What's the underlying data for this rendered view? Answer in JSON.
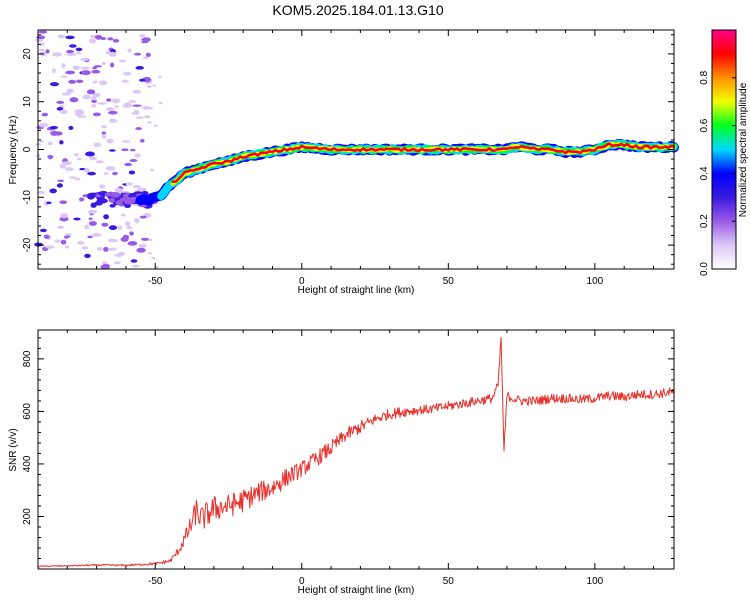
{
  "figure": {
    "title": "KOM5.2025.184.01.13.G10"
  },
  "chart_data": [
    {
      "type": "heatmap",
      "xlabel": "Height of straight line (km)",
      "ylabel": "Frequency (Hz)",
      "xlim": [
        -90,
        127
      ],
      "ylim": [
        -25,
        25
      ],
      "x_ticks": [
        -50,
        0,
        50,
        100
      ],
      "y_ticks": [
        -20,
        -10,
        0,
        10,
        20
      ],
      "colorbar": {
        "label": "Normalized spectral amplitude",
        "range": [
          0,
          1
        ],
        "ticks": [
          0.0,
          0.2,
          0.4,
          0.6,
          0.8
        ],
        "colors": [
          "#ffffff",
          "#dcc8f6",
          "#9a5ae8",
          "#3a1ae0",
          "#0000ff",
          "#00d8ff",
          "#00ff20",
          "#f0ff00",
          "#ff9000",
          "#ff0000",
          "#ff0088"
        ]
      },
      "ridge_x": [
        -90,
        -60,
        -52,
        -48,
        -45,
        -40,
        -35,
        -30,
        -25,
        -20,
        -15,
        -10,
        -5,
        0,
        10,
        20,
        30,
        40,
        50,
        60,
        70,
        72,
        75,
        80,
        85,
        90,
        95,
        100,
        105,
        110,
        115,
        120,
        127
      ],
      "ridge_freq": [
        -10,
        -10.5,
        -10.5,
        -9.5,
        -7.5,
        -5,
        -4,
        -3,
        -2.5,
        -1.5,
        -1,
        -0.5,
        0,
        0.5,
        0,
        0,
        0,
        0,
        0,
        0,
        0,
        0.5,
        0.5,
        0,
        0,
        -0.5,
        -0.5,
        0,
        1,
        1,
        0.5,
        0.5,
        0.5
      ],
      "grid": false
    },
    {
      "type": "line",
      "xlabel": "Height of straight line (km)",
      "ylabel": "SNR (v/v)",
      "xlim": [
        -90,
        127
      ],
      "ylim": [
        0,
        910
      ],
      "x_ticks": [
        -50,
        0,
        50,
        100
      ],
      "y_ticks": [
        200,
        400,
        600,
        800
      ],
      "series": [
        {
          "color": "#e8322d",
          "x": [
            -90,
            -80,
            -70,
            -60,
            -50,
            -45,
            -42,
            -38,
            -36,
            -34,
            -30,
            -25,
            -20,
            -15,
            -10,
            -5,
            0,
            5,
            10,
            15,
            20,
            25,
            30,
            35,
            40,
            45,
            50,
            55,
            60,
            65,
            67,
            68,
            69,
            70,
            72,
            75,
            80,
            85,
            90,
            95,
            100,
            105,
            110,
            115,
            120,
            127
          ],
          "y": [
            10,
            12,
            15,
            14,
            20,
            30,
            70,
            160,
            220,
            190,
            230,
            240,
            260,
            290,
            310,
            350,
            380,
            420,
            460,
            510,
            540,
            570,
            590,
            600,
            605,
            610,
            620,
            630,
            640,
            650,
            700,
            880,
            440,
            660,
            650,
            640,
            640,
            650,
            650,
            645,
            650,
            660,
            655,
            665,
            665,
            675
          ],
          "noise_amplitude": [
            2,
            2,
            3,
            3,
            5,
            8,
            15,
            40,
            50,
            50,
            50,
            45,
            45,
            40,
            40,
            35,
            30,
            30,
            30,
            25,
            25,
            20,
            20,
            20,
            18,
            18,
            18,
            18,
            18,
            18,
            18,
            18,
            18,
            18,
            18,
            18,
            18,
            18,
            18,
            18,
            18,
            18,
            18,
            18,
            18,
            18
          ]
        }
      ],
      "grid": false
    }
  ]
}
